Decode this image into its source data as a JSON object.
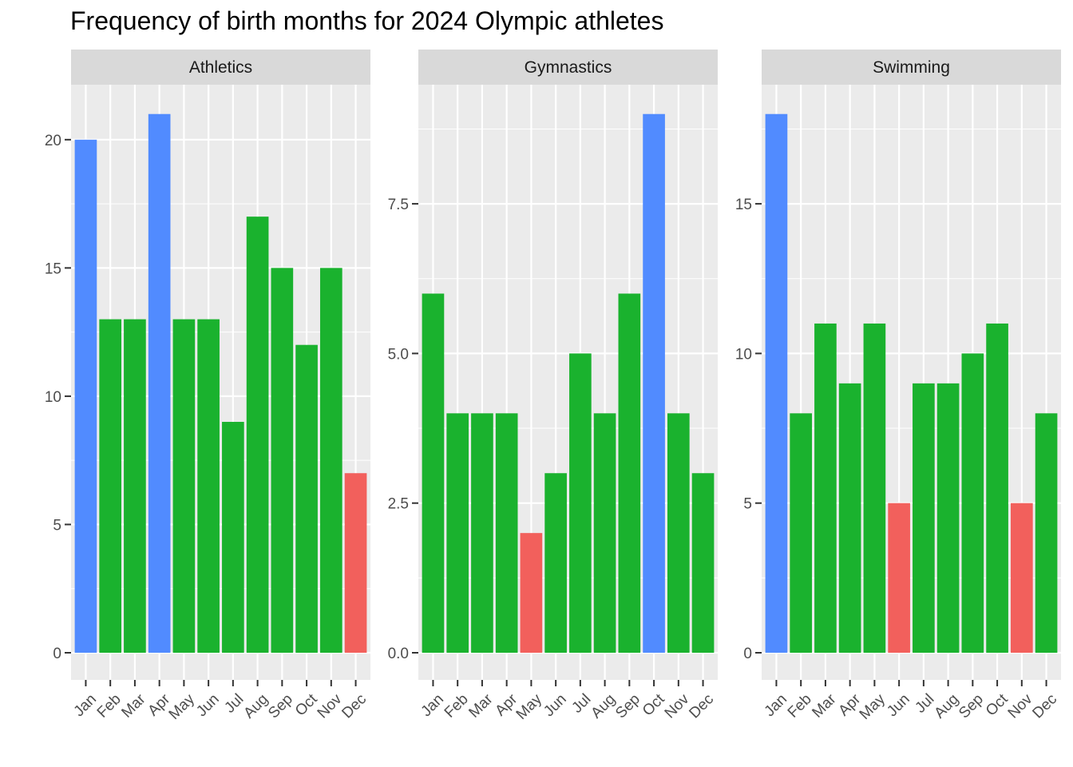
{
  "chart_data": {
    "type": "bar",
    "title": "Frequency of birth months for 2024 Olympic athletes",
    "categories": [
      "Jan",
      "Feb",
      "Mar",
      "Apr",
      "May",
      "Jun",
      "Jul",
      "Aug",
      "Sep",
      "Oct",
      "Nov",
      "Dec"
    ],
    "xlabel": "",
    "ylabel": "",
    "grid": true,
    "legend": "none",
    "colors": {
      "high": "#518BFF",
      "mid": "#1AB22E",
      "low": "#F2605C"
    },
    "panels": [
      {
        "name": "Athletics",
        "values": [
          20,
          13,
          13,
          21,
          13,
          13,
          9,
          17,
          15,
          12,
          15,
          7
        ],
        "levels": [
          "high",
          "mid",
          "mid",
          "high",
          "mid",
          "mid",
          "mid",
          "mid",
          "mid",
          "mid",
          "mid",
          "low"
        ],
        "ylim": [
          0,
          22.05
        ],
        "yticks": [
          0,
          5,
          10,
          15,
          20
        ],
        "ytick_labels": [
          "0",
          "5",
          "10",
          "15",
          "20"
        ]
      },
      {
        "name": "Gymnastics",
        "values": [
          6,
          4,
          4,
          4,
          2,
          3,
          5,
          4,
          6,
          9,
          4,
          3
        ],
        "levels": [
          "mid",
          "mid",
          "mid",
          "mid",
          "low",
          "mid",
          "mid",
          "mid",
          "mid",
          "high",
          "mid",
          "mid"
        ],
        "ylim": [
          0,
          9.45
        ],
        "yticks": [
          0,
          2.5,
          5,
          7.5
        ],
        "ytick_labels": [
          "0.0",
          "2.5",
          "5.0",
          "7.5"
        ]
      },
      {
        "name": "Swimming",
        "values": [
          18,
          8,
          11,
          9,
          11,
          5,
          9,
          9,
          10,
          11,
          5,
          8
        ],
        "levels": [
          "high",
          "mid",
          "mid",
          "mid",
          "mid",
          "low",
          "mid",
          "mid",
          "mid",
          "mid",
          "low",
          "mid"
        ],
        "ylim": [
          0,
          18.9
        ],
        "yticks": [
          0,
          5,
          10,
          15
        ],
        "ytick_labels": [
          "0",
          "5",
          "10",
          "15"
        ]
      }
    ]
  }
}
